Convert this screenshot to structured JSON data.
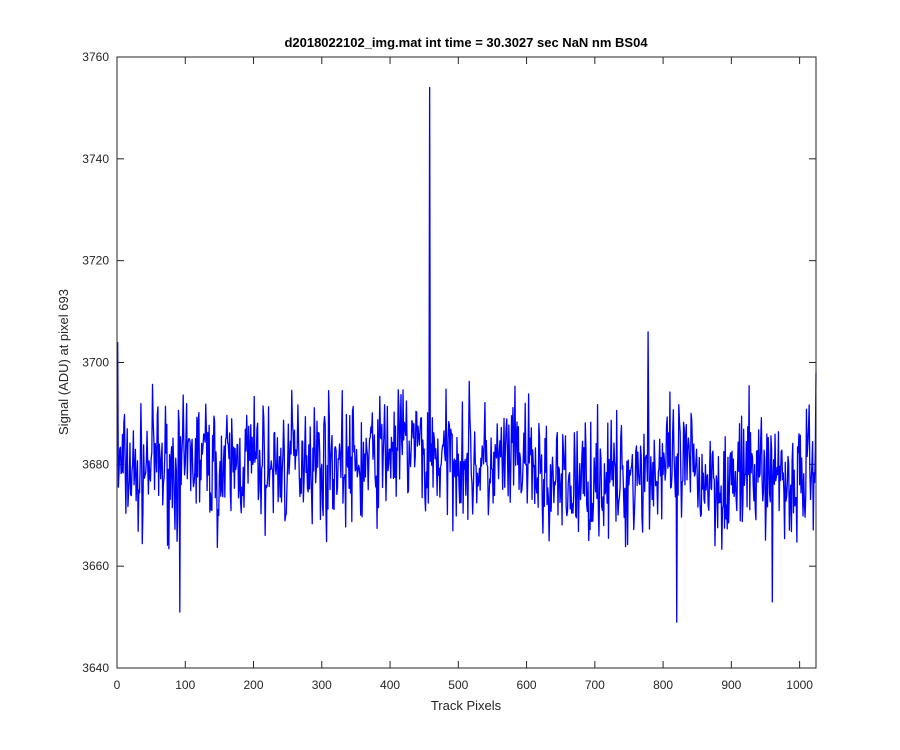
{
  "chart_data": {
    "type": "line",
    "title": "d2018022102_img.mat int time = 30.3027 sec  NaN nm BS04",
    "xlabel": "Track Pixels",
    "ylabel": "Signal (ADU) at pixel 693",
    "xlim": [
      0,
      1024
    ],
    "ylim": [
      3640,
      3760
    ],
    "xticks": [
      0,
      100,
      200,
      300,
      400,
      500,
      600,
      700,
      800,
      900,
      1000
    ],
    "yticks": [
      3640,
      3660,
      3680,
      3700,
      3720,
      3740,
      3760
    ],
    "grid": false,
    "legend": "none",
    "line_color": "#0000ff",
    "series": [
      {
        "x": [
          1,
          25,
          50,
          75,
          92,
          100,
          125,
          150,
          175,
          200,
          225,
          250,
          275,
          300,
          325,
          350,
          375,
          400,
          425,
          450,
          458,
          460,
          475,
          500,
          525,
          550,
          575,
          600,
          625,
          650,
          675,
          700,
          725,
          750,
          778,
          800,
          820,
          850,
          875,
          900,
          925,
          960,
          975,
          1000,
          1024
        ],
        "y": [
          3704,
          3676,
          3681,
          3679,
          3651,
          3680,
          3682,
          3678,
          3680,
          3681,
          3679,
          3680,
          3683,
          3680,
          3681,
          3679,
          3681,
          3683,
          3684,
          3683,
          3754,
          3684,
          3680,
          3682,
          3680,
          3679,
          3681,
          3680,
          3677,
          3675,
          3676,
          3678,
          3677,
          3676,
          3706,
          3678,
          3649,
          3678,
          3677,
          3676,
          3678,
          3653,
          3677,
          3676,
          3698
        ]
      }
    ]
  }
}
